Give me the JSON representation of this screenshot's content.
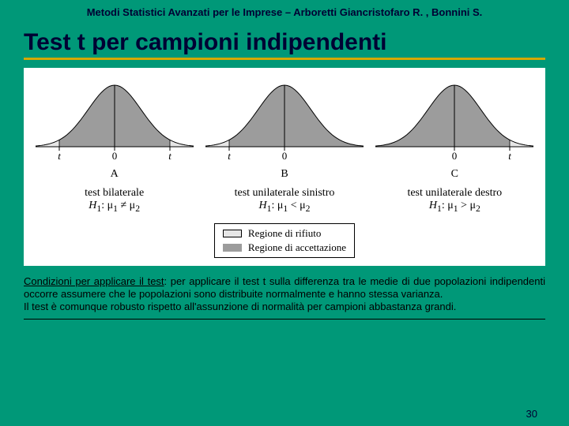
{
  "slide_bg": "#009878",
  "header": "Metodi Statistici Avanzati per le Imprese – Arboretti Giancristofaro R. , Bonnini S.",
  "header_color": "#000033",
  "title": "Test t per campioni indipendenti",
  "title_color": "#000033",
  "underline_color": "#d4a800",
  "curves": {
    "fill_accept": "#9c9c9c",
    "fill_reject": "#e6e6e6",
    "stroke": "#000000",
    "panels": [
      {
        "letter": "A",
        "caption": "test bilaterale",
        "hypothesis_html": "<i>H</i><sub>1</sub>: μ<sub>1</sub> ≠ μ<sub>2</sub>",
        "left_label": "t",
        "right_label": "t",
        "reject_left": true,
        "reject_right": true
      },
      {
        "letter": "B",
        "caption": "test unilaterale sinistro",
        "hypothesis_html": "<i>H</i><sub>1</sub>: μ<sub>1</sub> < μ<sub>2</sub>",
        "left_label": "t",
        "right_label": "",
        "reject_left": true,
        "reject_right": false
      },
      {
        "letter": "C",
        "caption": "test unilaterale destro",
        "hypothesis_html": "<i>H</i><sub>1</sub>: μ<sub>1</sub> > μ<sub>2</sub>",
        "left_label": "",
        "right_label": "t",
        "reject_left": false,
        "reject_right": true
      }
    ]
  },
  "legend": {
    "reject_label": "Regione di rifiuto",
    "accept_label": "Regione di accettazione",
    "reject_color": "#e6e6e6",
    "accept_color": "#9c9c9c"
  },
  "conditions_html": "<u>Condizioni per applicare il test</u>: per applicare il test t sulla differenza tra le medie di due popolazioni indipendenti occorre assumere che le popolazioni sono distribuite normalmente e hanno stessa varianza.<br>Il test è comunque robusto rispetto all'assunzione di normalità per campioni abbastanza grandi.",
  "page_number": "30",
  "page_number_color": "#000033"
}
